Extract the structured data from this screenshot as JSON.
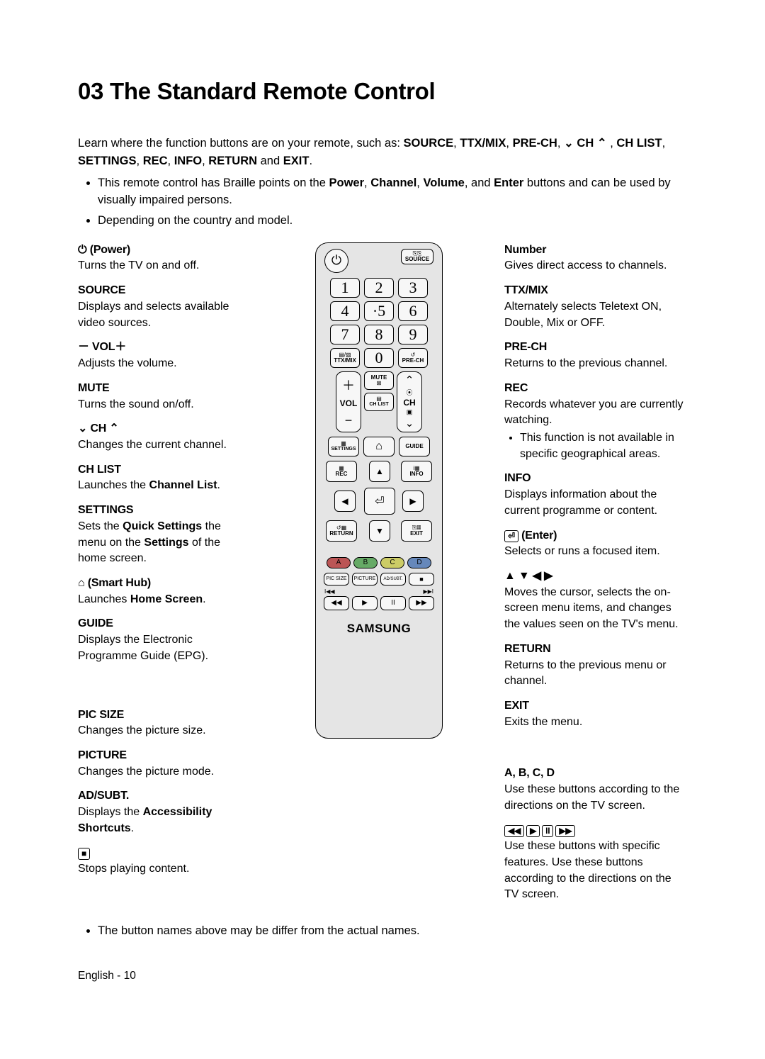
{
  "title": "03   The Standard Remote Control",
  "intro_parts": {
    "p1": "Learn where the function buttons are on your remote, such as: ",
    "k1": "SOURCE",
    "c1": ", ",
    "k2": "TTX/MIX",
    "c2": ", ",
    "k3": "PRE-CH",
    "c3": ", ",
    "ch_glyph_down": "⌄",
    "ch_label": " CH ",
    "ch_glyph_up": "⌃",
    "c4": " , ",
    "k4": "CH LIST",
    "c5": ", ",
    "k5": "SETTINGS",
    "c6": ", ",
    "k6": "REC",
    "c7": ", ",
    "k7": "INFO",
    "c8": ", ",
    "k8": "RETURN",
    "c9": " and ",
    "k9": "EXIT",
    "c10": "."
  },
  "top_bullets": {
    "b1a": "This remote control has Braille points on the ",
    "b1_1": "Power",
    "b1c1": ", ",
    "b1_2": "Channel",
    "b1c2": ", ",
    "b1_3": "Volume",
    "b1c3": ", and ",
    "b1_4": "Enter",
    "b1b": " buttons and can be used by visually impaired persons.",
    "b2": "Depending on the country and model."
  },
  "left": [
    {
      "k": "⏻ (Power)",
      "d": "Turns the TV on and off."
    },
    {
      "k": "SOURCE",
      "d": "Displays and selects available video sources."
    },
    {
      "k": "－ VOL＋",
      "d": "Adjusts the volume."
    },
    {
      "k": "MUTE",
      "d": "Turns the sound on/off."
    },
    {
      "k": "⌄ CH ⌃",
      "d": "Changes the current channel."
    },
    {
      "k": "CH LIST",
      "d_html": [
        "Launches the ",
        "Channel List",
        "."
      ]
    },
    {
      "k": "SETTINGS",
      "d_html": [
        "Sets the ",
        "Quick Settings",
        " the menu on the ",
        "Settings",
        " of the home screen."
      ]
    },
    {
      "k": "⌂ (Smart Hub)",
      "d_html": [
        "Launches ",
        "Home Screen",
        "."
      ]
    },
    {
      "k": "GUIDE",
      "d": "Displays the Electronic Programme Guide (EPG)."
    },
    {
      "k": "PIC SIZE",
      "d": "Changes the picture size.",
      "gap": true
    },
    {
      "k": "PICTURE",
      "d": "Changes the picture mode."
    },
    {
      "k": "AD/SUBT.",
      "d_html": [
        "Displays the ",
        "Accessibility Shortcuts",
        "."
      ]
    },
    {
      "kglyph": "■",
      "d": "Stops playing content."
    }
  ],
  "right": [
    {
      "k": "Number",
      "d": "Gives direct access to channels."
    },
    {
      "k": "TTX/MIX",
      "d": "Alternately selects Teletext ON, Double, Mix or OFF."
    },
    {
      "k": "PRE-CH",
      "d": "Returns to the previous channel."
    },
    {
      "k": "REC",
      "d": "Records whatever you are currently watching.",
      "sub": "This function is not available in specific geographical areas."
    },
    {
      "k": "INFO",
      "d": "Displays information about the current programme or content."
    },
    {
      "kglyph_enter": "⏎",
      "klabel": "(Enter)",
      "d": "Selects or runs a focused item."
    },
    {
      "glyphs": "▲ ▼ ◀ ▶",
      "d": "Moves the cursor, selects the on-screen menu items, and changes the values seen on the TV's menu."
    },
    {
      "k": "RETURN",
      "d": "Returns to the previous menu or channel."
    },
    {
      "k": "EXIT",
      "d": "Exits the menu."
    },
    {
      "k": "A, B, C, D",
      "d": "Use these buttons according to the directions on the TV screen.",
      "gap": true
    },
    {
      "glyphs_box": [
        "◀◀",
        "▶",
        "II",
        "▶▶"
      ],
      "d": "Use these buttons with specific features. Use these buttons according to the directions on the TV screen."
    }
  ],
  "remote": {
    "power": "⏻",
    "source_top": "⎘⎘",
    "source": "SOURCE",
    "nums": [
      "1",
      "2",
      "3",
      "4",
      "·5",
      "6",
      "7",
      "8",
      "9"
    ],
    "ttx_top": "▤/▨",
    "ttx": "TTX/MIX",
    "zero": "0",
    "prech_top": "↺",
    "prech": "PRE-CH",
    "vol_plus": "＋",
    "vol": "VOL",
    "vol_minus": "−",
    "mute": "MUTE",
    "mute_ic": "⊠",
    "chlist_ic": "▤",
    "chlist": "CH LIST",
    "ch_up": "⌃",
    "ch_rec": "⦿",
    "ch": "CH",
    "ch_box": "▣",
    "ch_down": "⌄",
    "settings_ic": "▦",
    "settings": "SETTINGS",
    "home": "⌂",
    "guide": "GUIDE",
    "rec_ic": "▦",
    "rec": "REC",
    "info_ic": "i▦",
    "info": "INFO",
    "up": "▲",
    "down": "▼",
    "left": "◀",
    "right": "▶",
    "enter": "⏎",
    "return_ic": "↺▦",
    "return": "RETURN",
    "exit_ic": "⎘▦",
    "exit": "EXIT",
    "A": "A",
    "B": "B",
    "C": "C",
    "D": "D",
    "pic_size": "PIC SIZE",
    "picture": "PICTURE",
    "adsubt": "AD/SUBT.",
    "stop": "■",
    "skip_l": "I◀◀",
    "skip_r": "▶▶I",
    "t_rew": "◀◀",
    "t_play": "▶",
    "t_pause": "II",
    "t_ff": "▶▶",
    "brand": "SAMSUNG"
  },
  "bottom_bullet": "The button names above may be differ from the actual names.",
  "footer": "English - 10",
  "colors": {
    "bg": "#ffffff",
    "text": "#000000",
    "remote_body": "#e5e5e5",
    "button_face": "#f7f7f7"
  }
}
